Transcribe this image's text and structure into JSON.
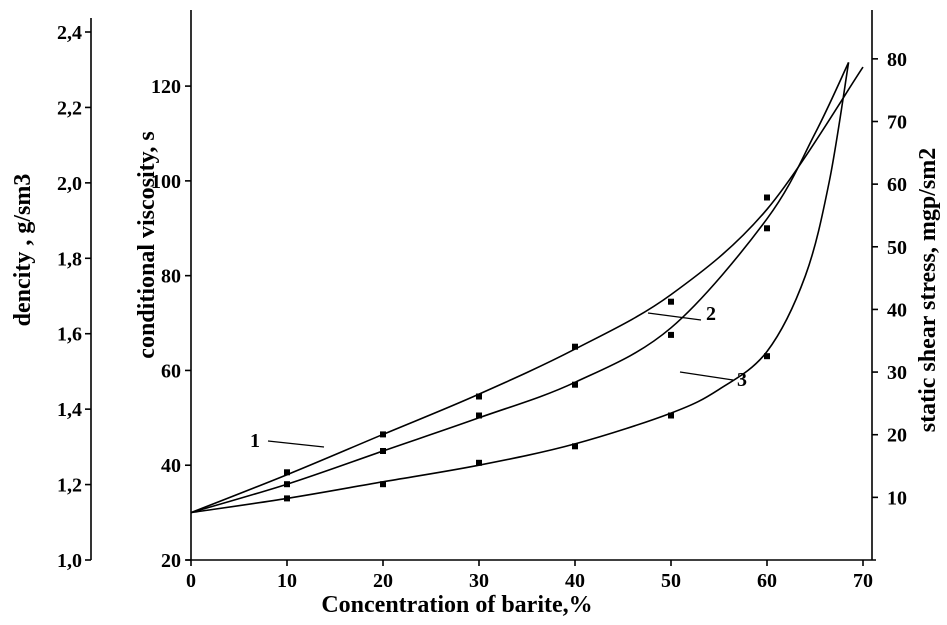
{
  "chart_data": {
    "type": "line",
    "xlabel": "Concentration of barite,%",
    "x_ticks": [
      "0",
      "10",
      "20",
      "30",
      "40",
      "50",
      "60",
      "70"
    ],
    "xlim": [
      0,
      70
    ],
    "axes": {
      "density": {
        "label": "dencity , g/sm3",
        "ticks": [
          "1,0",
          "1,2",
          "1,4",
          "1,6",
          "1,8",
          "2,0",
          "2,2",
          "2,4"
        ],
        "range": [
          1.0,
          2.4
        ]
      },
      "viscosity": {
        "label": "conditional viscosity, s",
        "ticks": [
          "20",
          "40",
          "60",
          "80",
          "100",
          "120"
        ],
        "range": [
          20,
          125
        ]
      },
      "shear": {
        "label": "static shear stress, mgp/sm2",
        "ticks": [
          "10",
          "20",
          "30",
          "40",
          "50",
          "60",
          "70",
          "80"
        ],
        "range": [
          0,
          87
        ]
      }
    },
    "series": [
      {
        "name": "1",
        "axis": "viscosity",
        "x": [
          0,
          10,
          20,
          30,
          40,
          50,
          60
        ],
        "values": [
          30,
          38.5,
          46.5,
          54.5,
          65,
          74.5,
          96.5
        ],
        "curve_x": [
          0,
          10,
          20,
          30,
          40,
          50,
          60,
          70
        ],
        "curve_y": [
          30,
          38,
          46.5,
          55,
          64.5,
          76,
          94,
          124
        ]
      },
      {
        "name": "2",
        "axis": "viscosity",
        "x": [
          0,
          10,
          20,
          30,
          40,
          50,
          60
        ],
        "values": [
          30,
          36,
          43,
          50.5,
          57,
          67.5,
          90
        ],
        "curve_x": [
          0,
          10,
          20,
          30,
          40,
          50,
          60,
          65,
          68.5
        ],
        "curve_y": [
          30,
          36,
          43,
          50,
          57.5,
          69,
          92,
          110,
          125
        ]
      },
      {
        "name": "3",
        "axis": "viscosity",
        "x": [
          0,
          10,
          20,
          30,
          40,
          50,
          60
        ],
        "values": [
          30,
          33,
          36,
          40.5,
          44,
          50.5,
          63
        ],
        "curve_x": [
          0,
          10,
          20,
          30,
          40,
          50,
          55,
          60,
          64,
          66.5,
          68.5
        ],
        "curve_y": [
          30,
          33,
          36.5,
          40,
          44.5,
          51,
          56,
          64,
          80,
          100,
          125
        ]
      }
    ]
  }
}
